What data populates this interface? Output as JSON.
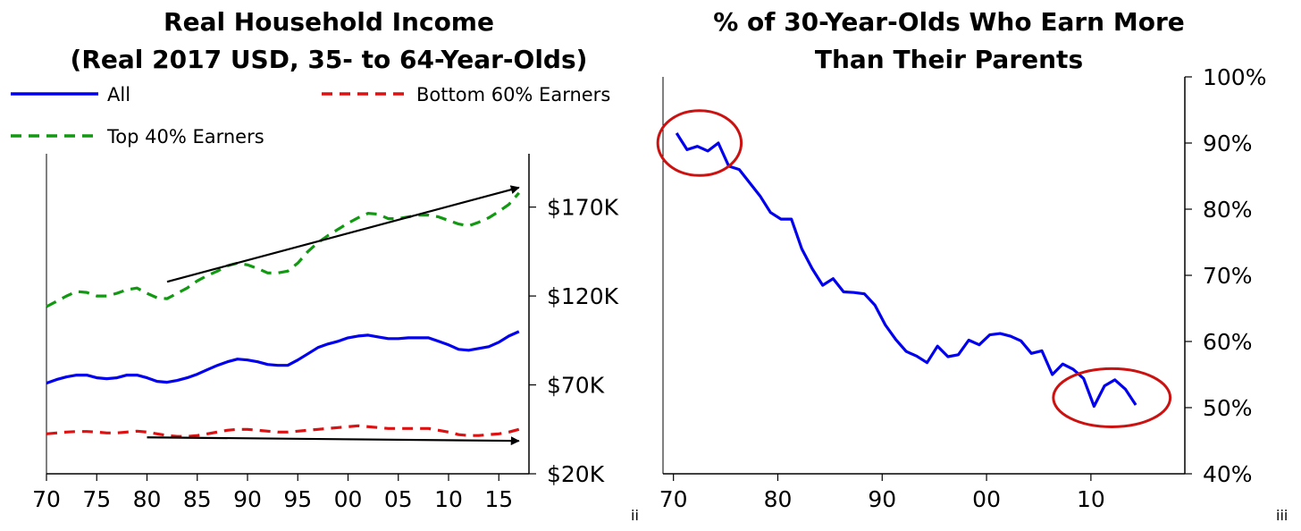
{
  "chart_data": [
    {
      "type": "line",
      "title_line1": "Real Household Income",
      "title_line2": "(Real 2017 USD, 35- to 64-Year-Olds)",
      "x_tick_labels": [
        "70",
        "75",
        "80",
        "85",
        "90",
        "95",
        "00",
        "05",
        "10",
        "15"
      ],
      "x_tick_years": [
        1970,
        1975,
        1980,
        1985,
        1990,
        1995,
        2000,
        2005,
        2010,
        2015
      ],
      "xlim": [
        1970,
        2018
      ],
      "y_tick_labels": [
        "$170K",
        "$120K",
        "$70K",
        "$20K"
      ],
      "y_tick_values": [
        170000,
        120000,
        70000,
        20000
      ],
      "ylim": [
        20000,
        200000
      ],
      "y_axis_side": "right",
      "note": "ii",
      "series": [
        {
          "name": "All",
          "color": "#0000ee",
          "style": "solid",
          "x": [
            1970,
            1971,
            1972,
            1973,
            1974,
            1975,
            1976,
            1977,
            1978,
            1979,
            1980,
            1981,
            1982,
            1983,
            1984,
            1985,
            1986,
            1987,
            1988,
            1989,
            1990,
            1991,
            1992,
            1993,
            1994,
            1995,
            1996,
            1997,
            1998,
            1999,
            2000,
            2001,
            2002,
            2003,
            2004,
            2005,
            2006,
            2007,
            2008,
            2009,
            2010,
            2011,
            2012,
            2013,
            2014,
            2015,
            2016,
            2017
          ],
          "y": [
            71000,
            73000,
            74500,
            75500,
            75500,
            74000,
            73500,
            74000,
            75500,
            75500,
            74000,
            72000,
            71500,
            72500,
            74000,
            76000,
            78500,
            81000,
            83000,
            84500,
            84000,
            83000,
            81500,
            81000,
            81000,
            84000,
            87500,
            91000,
            93000,
            94500,
            96500,
            97500,
            98000,
            97000,
            96000,
            96000,
            96500,
            96500,
            96500,
            94500,
            92500,
            90000,
            89500,
            90500,
            91500,
            94000,
            97500,
            100000
          ]
        },
        {
          "name": "Bottom 60% Earners",
          "color": "#dd1111",
          "style": "dashed",
          "x": [
            1970,
            1971,
            1972,
            1973,
            1974,
            1975,
            1976,
            1977,
            1978,
            1979,
            1980,
            1981,
            1982,
            1983,
            1984,
            1985,
            1986,
            1987,
            1988,
            1989,
            1990,
            1991,
            1992,
            1993,
            1994,
            1995,
            1996,
            1997,
            1998,
            1999,
            2000,
            2001,
            2002,
            2003,
            2004,
            2005,
            2006,
            2007,
            2008,
            2009,
            2010,
            2011,
            2012,
            2013,
            2014,
            2015,
            2016,
            2017
          ],
          "y": [
            42500,
            43000,
            43500,
            43800,
            43800,
            43500,
            43000,
            43000,
            43500,
            44000,
            43500,
            42500,
            41500,
            41000,
            41000,
            41500,
            42500,
            43500,
            44500,
            45000,
            45000,
            44500,
            44000,
            43500,
            43500,
            44000,
            44500,
            45000,
            45500,
            46000,
            46500,
            47000,
            46500,
            46000,
            45500,
            45500,
            45500,
            45500,
            45500,
            44500,
            43500,
            42000,
            41500,
            41500,
            42000,
            42500,
            43500,
            45000
          ]
        },
        {
          "name": "Top 40% Earners",
          "color": "#119911",
          "style": "dashed",
          "x": [
            1970,
            1971,
            1972,
            1973,
            1974,
            1975,
            1976,
            1977,
            1978,
            1979,
            1980,
            1981,
            1982,
            1983,
            1984,
            1985,
            1986,
            1987,
            1988,
            1989,
            1990,
            1991,
            1992,
            1993,
            1994,
            1995,
            1996,
            1997,
            1998,
            1999,
            2000,
            2001,
            2002,
            2003,
            2004,
            2005,
            2006,
            2007,
            2008,
            2009,
            2010,
            2011,
            2012,
            2013,
            2014,
            2015,
            2016,
            2017
          ],
          "y": [
            114000,
            117000,
            120000,
            122500,
            122000,
            120000,
            120000,
            121500,
            123500,
            124500,
            121500,
            119000,
            118500,
            121500,
            124500,
            128500,
            131500,
            134000,
            137000,
            138500,
            137500,
            135500,
            133000,
            133000,
            134000,
            138500,
            145000,
            150000,
            154000,
            157500,
            161000,
            164000,
            166500,
            166000,
            163500,
            163500,
            164500,
            165500,
            165500,
            164500,
            162500,
            160500,
            159500,
            161500,
            164000,
            167500,
            171500,
            178000
          ]
        }
      ],
      "arrows": [
        {
          "from": [
            1982,
            128000
          ],
          "to": [
            2017,
            181000
          ]
        },
        {
          "from": [
            1980,
            40500
          ],
          "to": [
            2017,
            38500
          ]
        }
      ]
    },
    {
      "type": "line",
      "title_line1": "% of 30-Year-Olds Who Earn More",
      "title_line2": "Than Their Parents",
      "x_tick_labels": [
        "70",
        "80",
        "90",
        "00",
        "10"
      ],
      "x_tick_years": [
        1970,
        1980,
        1990,
        2000,
        2010
      ],
      "xlim": [
        1969,
        2019
      ],
      "y_tick_labels": [
        "100%",
        "90%",
        "80%",
        "70%",
        "60%",
        "50%",
        "40%"
      ],
      "y_tick_values": [
        100,
        90,
        80,
        70,
        60,
        50,
        40
      ],
      "ylim": [
        40,
        100
      ],
      "y_axis_side": "right",
      "note": "iii",
      "series": [
        {
          "name": "",
          "color": "#0000ee",
          "style": "solid",
          "x": [
            1970.3,
            1971.3,
            1972.3,
            1973.3,
            1974.3,
            1975.3,
            1976.3,
            1977.3,
            1978.3,
            1979.3,
            1980.3,
            1981.3,
            1982.3,
            1983.3,
            1984.3,
            1985.3,
            1986.3,
            1987.3,
            1988.3,
            1989.3,
            1990.3,
            1991.3,
            1992.3,
            1993.3,
            1994.3,
            1995.3,
            1996.3,
            1997.3,
            1998.3,
            1999.3,
            2000.3,
            2001.3,
            2002.3,
            2003.3,
            2004.3,
            2005.3,
            2006.3,
            2007.3,
            2008.3,
            2009.3,
            2010.3,
            2011.3,
            2012.3,
            2013.3,
            2014.3
          ],
          "y": [
            91.5,
            89.0,
            89.5,
            88.8,
            90.0,
            86.5,
            86.0,
            84.0,
            82.0,
            79.5,
            78.5,
            78.5,
            74.0,
            71.0,
            68.5,
            69.5,
            67.5,
            67.4,
            67.2,
            65.5,
            62.5,
            60.3,
            58.5,
            57.8,
            56.8,
            59.3,
            57.7,
            58.0,
            60.2,
            59.5,
            61.0,
            61.2,
            60.8,
            60.1,
            58.2,
            58.6,
            55.0,
            56.6,
            55.8,
            54.4,
            50.2,
            53.3,
            54.2,
            52.8,
            50.4
          ]
        }
      ],
      "circles": [
        {
          "center": [
            1972.5,
            90.0
          ],
          "rx_years": 4.0,
          "ry_units": 4.9
        },
        {
          "center": [
            2012.0,
            51.5
          ],
          "rx_years": 5.6,
          "ry_units": 4.4
        }
      ]
    }
  ]
}
